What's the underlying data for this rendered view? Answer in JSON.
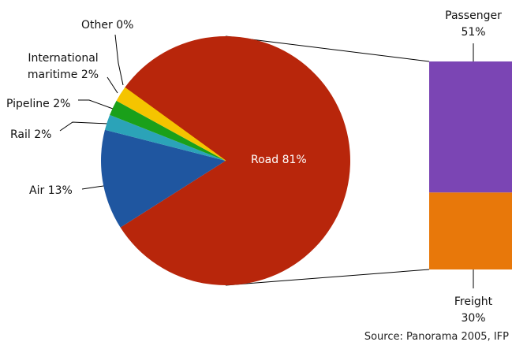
{
  "chart_data": [
    {
      "type": "pie",
      "categories": [
        "Road",
        "Air",
        "Rail",
        "Pipeline",
        "International maritime",
        "Other"
      ],
      "values": [
        81,
        13,
        2,
        2,
        2,
        0
      ],
      "value_labels": [
        "81%",
        "13%",
        "2%",
        "2%",
        "2%",
        "0%"
      ],
      "colors": [
        "#b8260b",
        "#1f56a0",
        "#2ba3b8",
        "#1aa01a",
        "#f5c400",
        "#f5c400"
      ],
      "source": "Source: Panorama 2005, IFP"
    },
    {
      "type": "bar",
      "categories": [
        "Passenger",
        "Freight"
      ],
      "values": [
        51,
        30
      ],
      "value_labels": [
        "51%",
        "30%"
      ],
      "colors": [
        "#7b45b4",
        "#e8780a"
      ]
    }
  ]
}
